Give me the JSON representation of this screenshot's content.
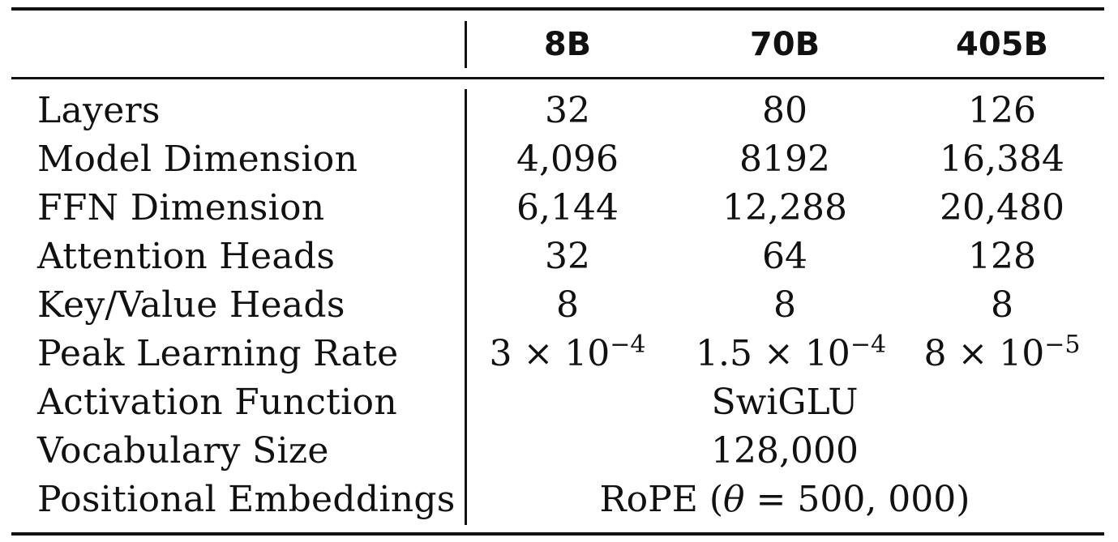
{
  "table": {
    "columns": [
      "8B",
      "70B",
      "405B"
    ],
    "rows": [
      {
        "label": "Layers",
        "values": [
          "32",
          "80",
          "126"
        ]
      },
      {
        "label": "Model Dimension",
        "values": [
          "4,096",
          "8192",
          "16,384"
        ]
      },
      {
        "label": "FFN Dimension",
        "values": [
          "6,144",
          "12,288",
          "20,480"
        ]
      },
      {
        "label": "Attention Heads",
        "values": [
          "32",
          "64",
          "128"
        ]
      },
      {
        "label": "Key/Value Heads",
        "values": [
          "8",
          "8",
          "8"
        ]
      },
      {
        "label": "Peak Learning Rate",
        "values": [
          {
            "mantissa": "3 × 10",
            "exponent": "−4"
          },
          {
            "mantissa": "1.5 × 10",
            "exponent": "−4"
          },
          {
            "mantissa": "8 × 10",
            "exponent": "−5"
          }
        ]
      },
      {
        "label": "Activation Function",
        "span_value": "SwiGLU"
      },
      {
        "label": "Vocabulary Size",
        "span_value": "128,000"
      },
      {
        "label": "Positional Embeddings",
        "span_value": {
          "prefix": "RoPE (",
          "symbol": "θ",
          "suffix": " = 500, 000)"
        }
      }
    ]
  }
}
